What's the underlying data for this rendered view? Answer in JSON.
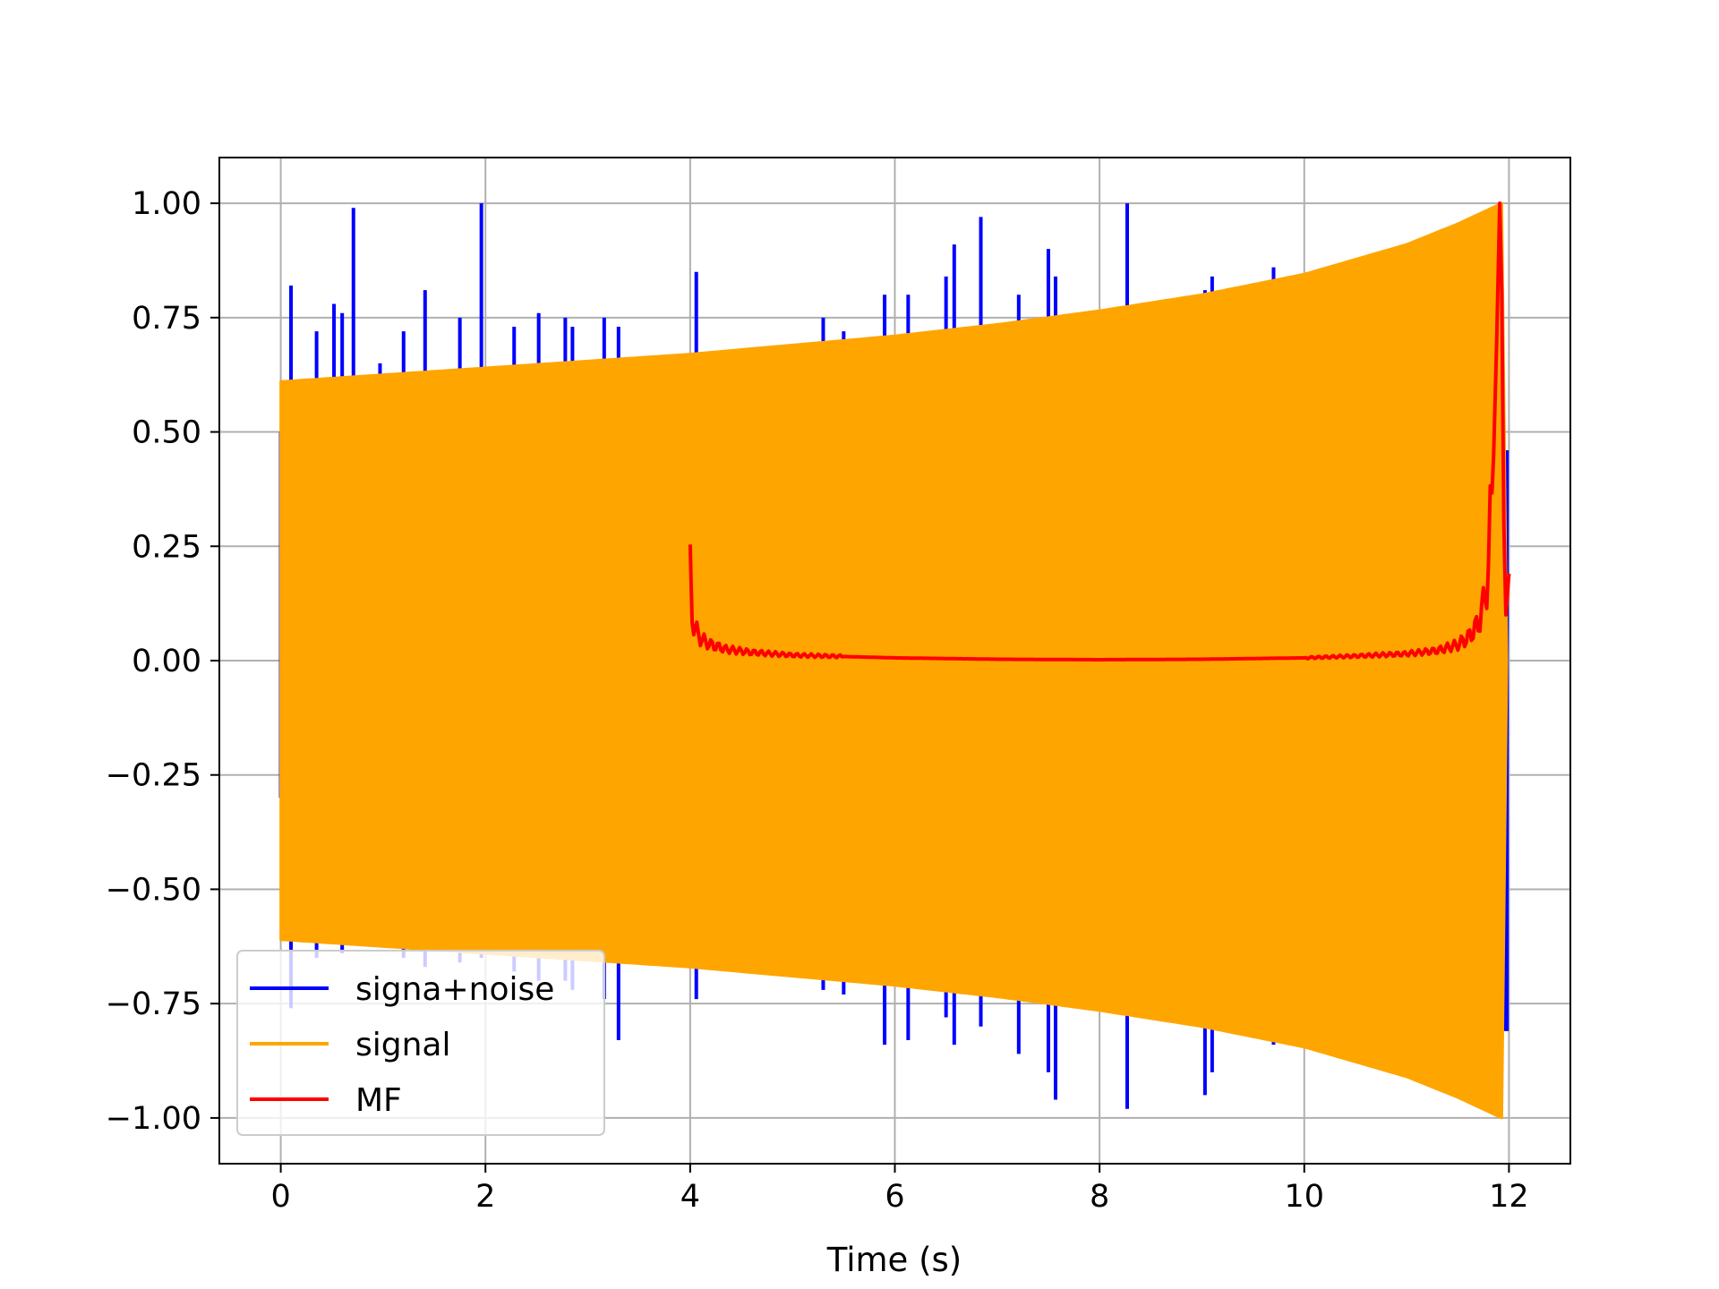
{
  "chart_data": {
    "type": "line",
    "title": "",
    "xlabel": "Time (s)",
    "ylabel": "",
    "xlim": [
      -0.6,
      12.6
    ],
    "ylim": [
      -1.1,
      1.1
    ],
    "xticks": [
      0,
      2,
      4,
      6,
      8,
      10,
      12
    ],
    "xtick_labels": [
      "0",
      "2",
      "4",
      "6",
      "8",
      "10",
      "12"
    ],
    "yticks": [
      1.0,
      0.75,
      0.5,
      0.25,
      0.0,
      -0.25,
      -0.5,
      -0.75,
      -1.0
    ],
    "ytick_labels": [
      "1.00",
      "0.75",
      "0.50",
      "0.25",
      "0.00",
      "−0.25",
      "−0.50",
      "−0.75",
      "−1.00"
    ],
    "grid": true,
    "legend": "lower-left",
    "series": [
      {
        "name": "signa+noise",
        "color": "#0000ff",
        "style": "spikes",
        "spikes": [
          [
            0.1,
            0.82,
            -0.76
          ],
          [
            0.35,
            0.72,
            -0.65
          ],
          [
            0.52,
            0.78,
            -0.62
          ],
          [
            0.6,
            0.76,
            -0.64
          ],
          [
            0.71,
            0.99,
            -0.62
          ],
          [
            0.97,
            0.65,
            -0.6
          ],
          [
            1.2,
            0.72,
            -0.65
          ],
          [
            1.41,
            0.81,
            -0.67
          ],
          [
            1.75,
            0.75,
            -0.66
          ],
          [
            1.96,
            1.0,
            -0.65
          ],
          [
            2.28,
            0.73,
            -0.68
          ],
          [
            2.52,
            0.76,
            -0.7
          ],
          [
            2.78,
            0.75,
            -0.7
          ],
          [
            2.85,
            0.73,
            -0.72
          ],
          [
            3.16,
            0.75,
            -0.74
          ],
          [
            3.3,
            0.73,
            -0.83
          ],
          [
            4.06,
            0.85,
            -0.74
          ],
          [
            5.3,
            0.75,
            -0.72
          ],
          [
            5.5,
            0.72,
            -0.73
          ],
          [
            5.9,
            0.8,
            -0.84
          ],
          [
            6.13,
            0.8,
            -0.83
          ],
          [
            6.5,
            0.84,
            -0.78
          ],
          [
            6.58,
            0.91,
            -0.84
          ],
          [
            6.84,
            0.97,
            -0.8
          ],
          [
            7.21,
            0.8,
            -0.86
          ],
          [
            7.5,
            0.9,
            -0.9
          ],
          [
            7.57,
            0.84,
            -0.96
          ],
          [
            8.27,
            1.0,
            -0.98
          ],
          [
            9.03,
            0.81,
            -0.95
          ],
          [
            9.1,
            0.84,
            -0.9
          ],
          [
            9.7,
            0.86,
            -0.84
          ],
          [
            11.95,
            0.46,
            -0.81
          ]
        ]
      },
      {
        "name": "signal",
        "color": "#ffa500",
        "style": "chirp",
        "x_start": 0.0,
        "x_end": 11.93,
        "envelope": [
          [
            0,
            0.61
          ],
          [
            1,
            0.625
          ],
          [
            2,
            0.64
          ],
          [
            3,
            0.655
          ],
          [
            4,
            0.67
          ],
          [
            5,
            0.69
          ],
          [
            6,
            0.71
          ],
          [
            7,
            0.735
          ],
          [
            8,
            0.765
          ],
          [
            9,
            0.8
          ],
          [
            10,
            0.845
          ],
          [
            11,
            0.91
          ],
          [
            11.5,
            0.955
          ],
          [
            11.93,
            1.0
          ]
        ]
      },
      {
        "name": "MF",
        "color": "#ff0000",
        "style": "line",
        "x": [
          4.0,
          4.02,
          4.05,
          4.08,
          4.12,
          4.2,
          4.35,
          4.6,
          5.0,
          6.0,
          7.0,
          8.0,
          9.0,
          10.0,
          10.5,
          11.0,
          11.3,
          11.5,
          11.6,
          11.7,
          11.75,
          11.8,
          11.85,
          11.88,
          11.91,
          11.93,
          11.95,
          11.97,
          12.0
        ],
        "y": [
          0.19,
          0.1,
          0.07,
          0.055,
          0.045,
          0.035,
          0.025,
          0.018,
          0.012,
          0.006,
          0.003,
          0.002,
          0.003,
          0.006,
          0.01,
          0.015,
          0.022,
          0.035,
          0.05,
          0.08,
          0.12,
          0.2,
          0.45,
          0.7,
          1.0,
          0.8,
          0.3,
          0.1,
          0.19
        ]
      }
    ]
  }
}
